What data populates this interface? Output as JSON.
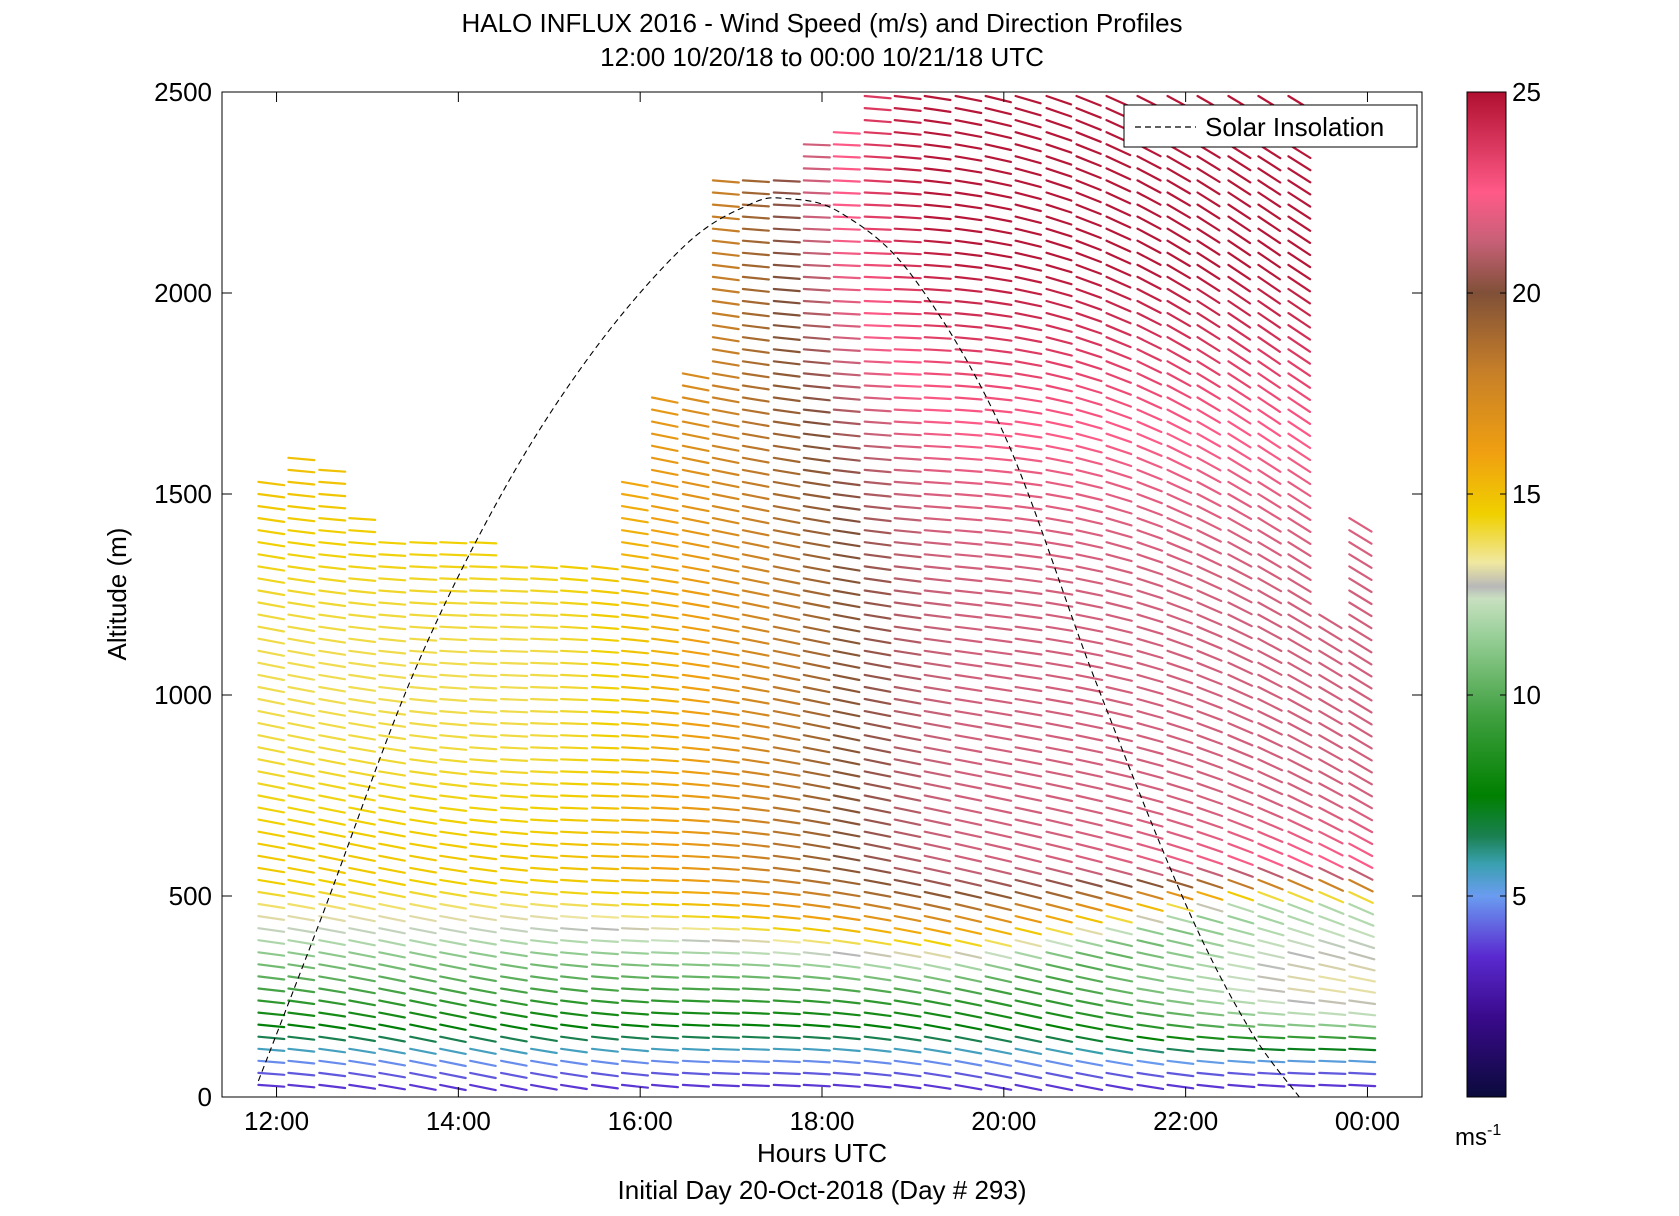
{
  "chart_data": {
    "type": "vector-field",
    "title": "HALO INFLUX 2016 - Wind Speed (m/s) and Direction Profiles",
    "subtitle": "12:00 10/20/18 to 00:00 10/21/18  UTC",
    "xlabel": "Hours UTC",
    "x_sublabel": "Initial Day 20-Oct-2018 (Day # 293)",
    "ylabel": "Altitude (m)",
    "xlim": [
      11.4,
      24.6
    ],
    "ylim": [
      0,
      2500
    ],
    "x_ticks": [
      {
        "value": 12,
        "label": "12:00"
      },
      {
        "value": 14,
        "label": "14:00"
      },
      {
        "value": 16,
        "label": "16:00"
      },
      {
        "value": 18,
        "label": "18:00"
      },
      {
        "value": 20,
        "label": "20:00"
      },
      {
        "value": 22,
        "label": "22:00"
      },
      {
        "value": 24,
        "label": "00:00"
      }
    ],
    "y_ticks": [
      {
        "value": 0,
        "label": "0"
      },
      {
        "value": 500,
        "label": "500"
      },
      {
        "value": 1000,
        "label": "1000"
      },
      {
        "value": 1500,
        "label": "1500"
      },
      {
        "value": 2000,
        "label": "2000"
      },
      {
        "value": 2500,
        "label": "2500"
      }
    ],
    "legend": {
      "entries": [
        {
          "name": "Solar Insolation",
          "style": "dashed",
          "color": "#000000"
        }
      ],
      "placement": "top-right"
    },
    "colorbar": {
      "range": [
        0,
        25
      ],
      "ticks": [
        {
          "value": 5,
          "label": "5"
        },
        {
          "value": 10,
          "label": "10"
        },
        {
          "value": 15,
          "label": "15"
        },
        {
          "value": 20,
          "label": "20"
        },
        {
          "value": 25,
          "label": "25"
        }
      ],
      "unit_label": "ms",
      "unit_exponent": "-1",
      "stops": [
        {
          "value": 0,
          "color": "#0a0a3c"
        },
        {
          "value": 2,
          "color": "#3a0a8c"
        },
        {
          "value": 3.5,
          "color": "#5a2ad0"
        },
        {
          "value": 5,
          "color": "#6a9cf0"
        },
        {
          "value": 5.8,
          "color": "#3aa0b0"
        },
        {
          "value": 6.5,
          "color": "#1a8050"
        },
        {
          "value": 7.5,
          "color": "#008000"
        },
        {
          "value": 9.5,
          "color": "#40a040"
        },
        {
          "value": 11.5,
          "color": "#9ad09a"
        },
        {
          "value": 12.4,
          "color": "#c8e0c0"
        },
        {
          "value": 12.7,
          "color": "#b8b8b8"
        },
        {
          "value": 13.3,
          "color": "#f0e8a0"
        },
        {
          "value": 14.5,
          "color": "#f0d000"
        },
        {
          "value": 16,
          "color": "#f0a010"
        },
        {
          "value": 18,
          "color": "#c88028"
        },
        {
          "value": 20,
          "color": "#805038"
        },
        {
          "value": 21.3,
          "color": "#c86078"
        },
        {
          "value": 22.5,
          "color": "#ff5a88"
        },
        {
          "value": 25,
          "color": "#b01030"
        }
      ]
    },
    "solar_insolation_curve": {
      "time_hours": [
        11.8,
        12.5,
        13.5,
        14.5,
        15.5,
        16.5,
        17.2,
        17.6,
        18.2,
        19.0,
        20.0,
        21.0,
        22.0,
        22.7,
        23.25
      ],
      "altitude_m": [
        40,
        450,
        1050,
        1510,
        1860,
        2120,
        2220,
        2235,
        2200,
        2040,
        1650,
        1040,
        480,
        170,
        0
      ]
    },
    "wind_profiles": {
      "time_start": 11.8,
      "time_step": 0.33,
      "altitude_step_m": 30,
      "note_units": "speed in m/s, direction in degrees (meteorological, direction wind comes from)",
      "times": [
        11.8,
        12.13,
        12.47,
        12.8,
        13.13,
        13.47,
        13.8,
        14.13,
        14.47,
        14.8,
        15.13,
        15.47,
        15.8,
        16.13,
        16.47,
        16.8,
        17.13,
        17.47,
        17.8,
        18.13,
        18.47,
        18.8,
        19.13,
        19.47,
        19.8,
        20.13,
        20.47,
        20.8,
        21.13,
        21.47,
        21.8,
        22.13,
        22.47,
        22.8,
        23.13,
        23.47,
        23.8
      ],
      "top_altitude_m": [
        1550,
        1600,
        1560,
        1450,
        1380,
        1380,
        1380,
        1380,
        1330,
        1330,
        1330,
        1330,
        1530,
        1750,
        1800,
        2280,
        2300,
        2300,
        2380,
        2400,
        2500,
        2500,
        2500,
        2500,
        2500,
        2500,
        2500,
        2500,
        2500,
        2500,
        2500,
        2500,
        2500,
        2500,
        2500,
        1220,
        1450
      ]
    }
  }
}
